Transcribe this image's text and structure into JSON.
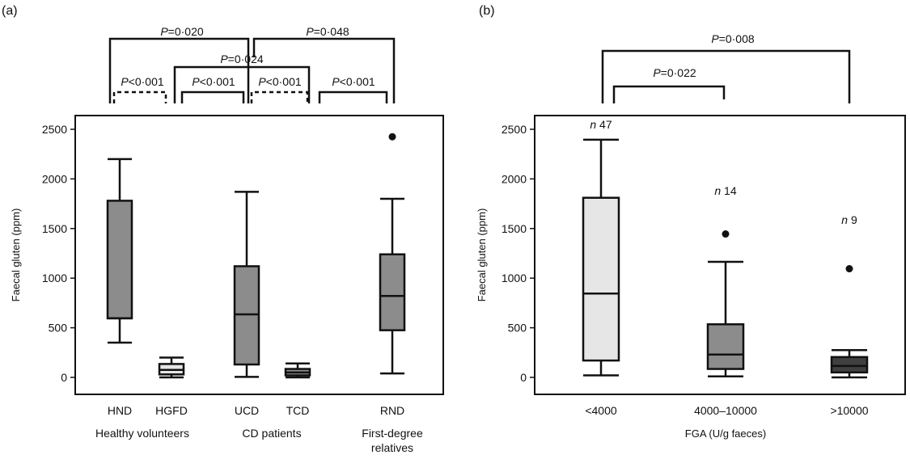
{
  "chart_data": [
    {
      "type": "box",
      "panel_label": "(a)",
      "ylabel": "Faecal gluten (ppm)",
      "ylim": [
        0,
        2500
      ],
      "yticks": [
        0,
        500,
        1000,
        1500,
        2000,
        2500
      ],
      "categories": [
        "HND",
        "HGFD",
        "UCD",
        "TCD",
        "RND"
      ],
      "groups": [
        "Healthy volunteers",
        "CD patients",
        "First-degree relatives"
      ],
      "group_lines": [
        [
          "First-degree",
          "relatives"
        ]
      ],
      "boxes": [
        {
          "category": "HND",
          "whisker_low": 350,
          "q1": 595,
          "median": 595,
          "q3": 1780,
          "whisker_high": 2200,
          "fill": "#8c8c8c",
          "outliers": []
        },
        {
          "category": "HGFD",
          "whisker_low": 0,
          "q1": 30,
          "median": 75,
          "q3": 135,
          "whisker_high": 200,
          "fill": "#e6e6e6",
          "outliers": []
        },
        {
          "category": "UCD",
          "whisker_low": 5,
          "q1": 130,
          "median": 635,
          "q3": 1120,
          "whisker_high": 1870,
          "fill": "#8c8c8c",
          "outliers": []
        },
        {
          "category": "TCD",
          "whisker_low": 0,
          "q1": 20,
          "median": 50,
          "q3": 85,
          "whisker_high": 140,
          "fill": "#8c8c8c",
          "outliers": []
        },
        {
          "category": "RND",
          "whisker_low": 40,
          "q1": 475,
          "median": 820,
          "q3": 1240,
          "whisker_high": 1800,
          "fill": "#8c8c8c",
          "outliers": [
            2425
          ]
        }
      ],
      "significance": [
        {
          "label": "P=0·020",
          "from": "HND",
          "to": "UCD",
          "dashed": false
        },
        {
          "label": "P=0·048",
          "from": "UCD",
          "to": "RND",
          "dashed": false
        },
        {
          "label": "P=0·024",
          "from": "HGFD",
          "to": "TCD",
          "dashed": false
        },
        {
          "label": "P<0·001",
          "from": "HND",
          "to": "HGFD",
          "dashed": true
        },
        {
          "label": "P<0·001",
          "from": "HGFD",
          "to": "UCD",
          "dashed": false
        },
        {
          "label": "P<0·001",
          "from": "UCD",
          "to": "TCD",
          "dashed": true
        },
        {
          "label": "P<0·001",
          "from": "TCD",
          "to": "RND",
          "dashed": false
        }
      ]
    },
    {
      "type": "box",
      "panel_label": "(b)",
      "ylabel": "Faecal gluten (ppm)",
      "xlabel": "FGA (U/g faeces)",
      "ylim": [
        0,
        2500
      ],
      "yticks": [
        0,
        500,
        1000,
        1500,
        2000,
        2500
      ],
      "categories": [
        "<4000",
        "4000–10000",
        ">10000"
      ],
      "boxes": [
        {
          "category": "<4000",
          "whisker_low": 20,
          "q1": 170,
          "median": 845,
          "q3": 1810,
          "whisker_high": 2395,
          "fill": "#e6e6e6",
          "outliers": [],
          "n_italic": "n",
          "n_value": "47"
        },
        {
          "category": "4000–10000",
          "whisker_low": 10,
          "q1": 85,
          "median": 230,
          "q3": 535,
          "whisker_high": 1165,
          "fill": "#8c8c8c",
          "outliers": [
            1445
          ],
          "n_italic": "n",
          "n_value": "14"
        },
        {
          "category": ">10000",
          "whisker_low": 0,
          "q1": 50,
          "median": 115,
          "q3": 205,
          "whisker_high": 275,
          "fill": "#404040",
          "outliers": [
            1095
          ],
          "n_italic": "n",
          "n_value": "9"
        }
      ],
      "significance": [
        {
          "label": "P=0·008",
          "from": "<4000",
          "to": ">10000",
          "dashed": false
        },
        {
          "label": "P=0·022",
          "from": "<4000",
          "to": "4000–10000",
          "dashed": false
        }
      ]
    }
  ]
}
